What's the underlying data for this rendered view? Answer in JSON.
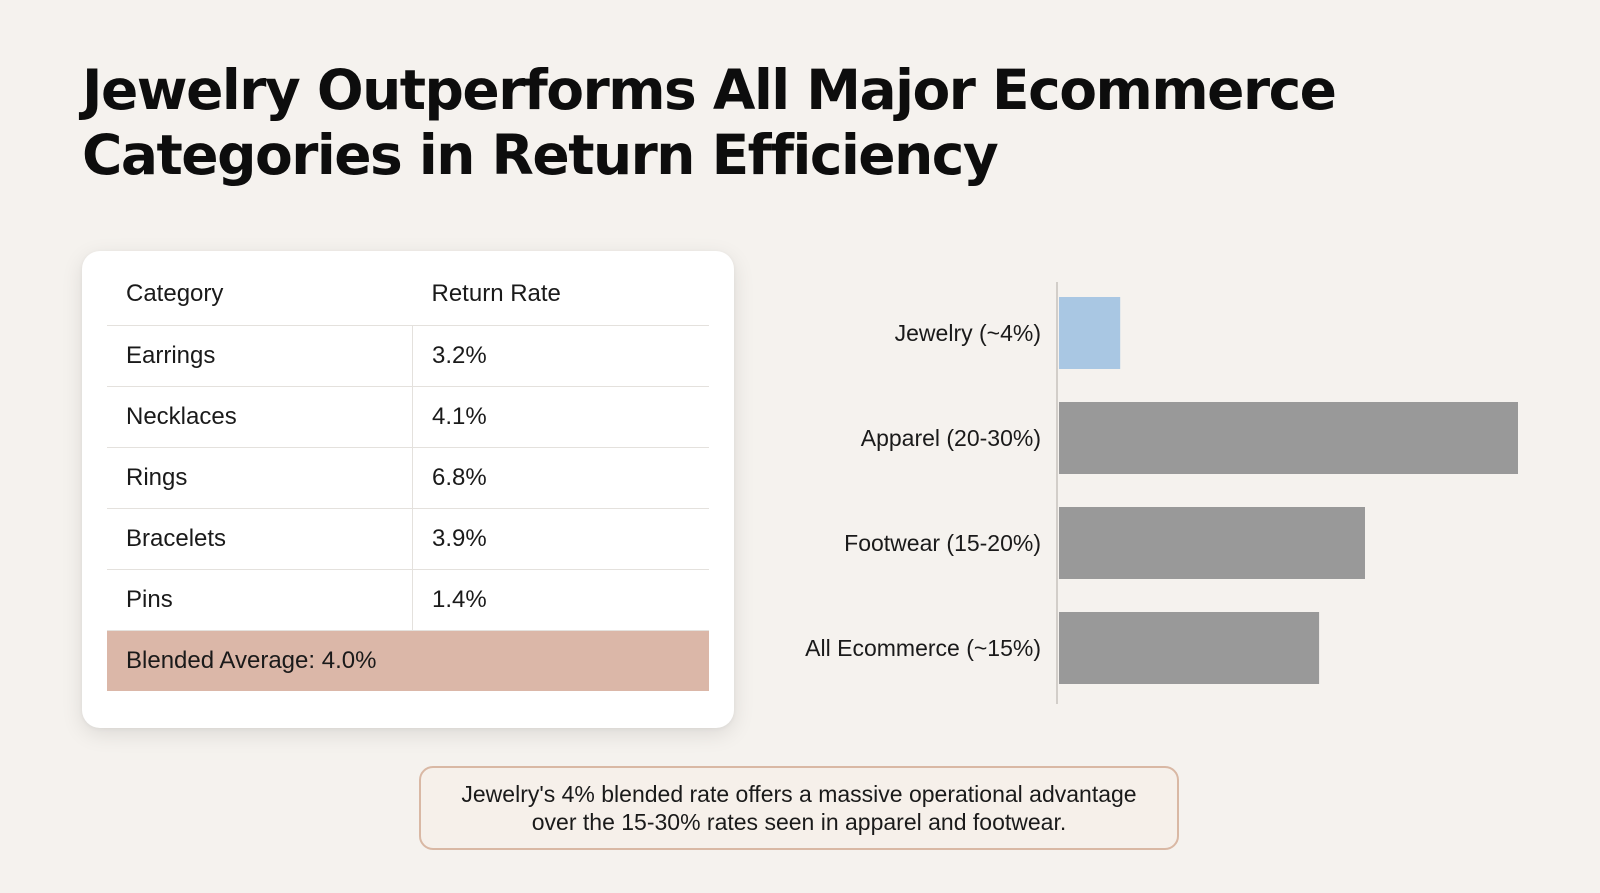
{
  "title": {
    "line1": "Jewelry Outperforms All Major Ecommerce",
    "line2": "Categories in Return Efficiency"
  },
  "table": {
    "headers": [
      "Category",
      "Return Rate"
    ],
    "rows": [
      {
        "category": "Earrings",
        "rate": "3.2%"
      },
      {
        "category": "Necklaces",
        "rate": "4.1%"
      },
      {
        "category": "Rings",
        "rate": "6.8%"
      },
      {
        "category": "Bracelets",
        "rate": "3.9%"
      },
      {
        "category": "Pins",
        "rate": "1.4%"
      }
    ],
    "footer": "Blended Average: 4.0%",
    "footer_color": "#dbb7a8"
  },
  "chart_data": {
    "type": "bar",
    "orientation": "horizontal",
    "categories": [
      "Jewelry (~4%)",
      "Apparel (20-30%)",
      "Footwear (15-20%)",
      "All Ecommerce (~15%)"
    ],
    "values": [
      4,
      30,
      20,
      17
    ],
    "colors": [
      "#a9c7e3",
      "#999999",
      "#999999",
      "#999999"
    ],
    "xlim": [
      0,
      30
    ],
    "grid": false,
    "tick_labels_shown": false
  },
  "callout": {
    "text": "Jewelry's 4% blended rate offers a massive operational advantage over the 15-30% rates seen in apparel and footwear."
  },
  "colors": {
    "background": "#f5f2ee",
    "highlight_bar": "#a9c7e3",
    "neutral_bar": "#999999",
    "callout_border": "#d9b8a4"
  }
}
